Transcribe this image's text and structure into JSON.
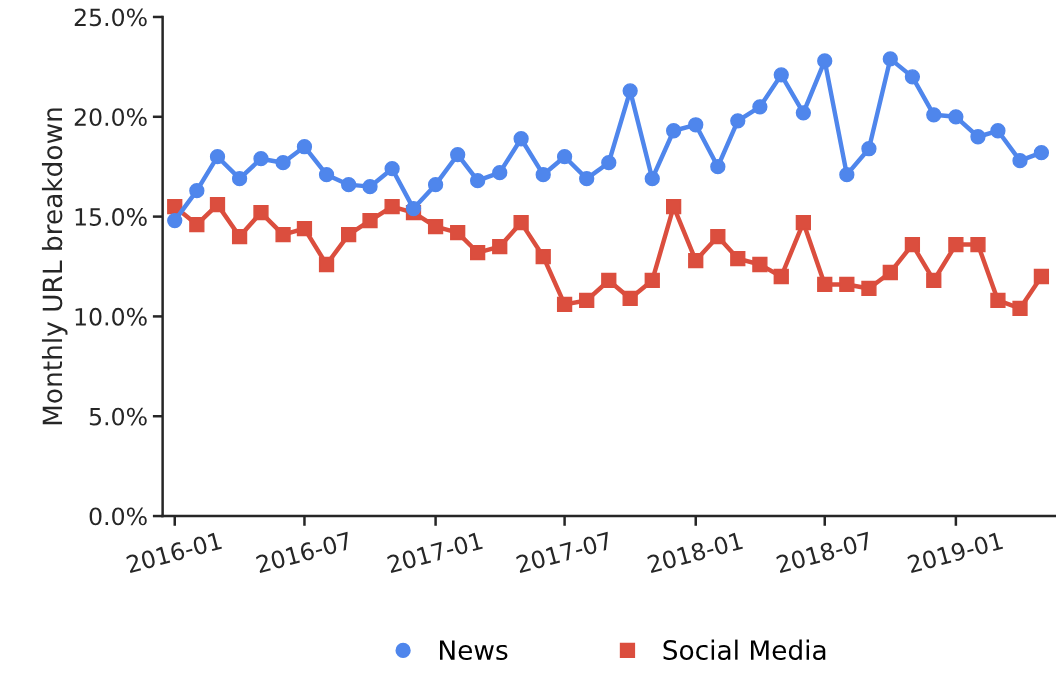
{
  "chart_data": {
    "type": "line",
    "ylabel": "Monthly URL breakdown",
    "x": [
      "2016-01",
      "2016-02",
      "2016-03",
      "2016-04",
      "2016-05",
      "2016-06",
      "2016-07",
      "2016-08",
      "2016-09",
      "2016-10",
      "2016-11",
      "2016-12",
      "2017-01",
      "2017-02",
      "2017-03",
      "2017-04",
      "2017-05",
      "2017-06",
      "2017-07",
      "2017-08",
      "2017-09",
      "2017-10",
      "2017-11",
      "2017-12",
      "2018-01",
      "2018-02",
      "2018-03",
      "2018-04",
      "2018-05",
      "2018-06",
      "2018-07",
      "2018-08",
      "2018-09",
      "2018-10",
      "2018-11",
      "2018-12",
      "2019-01",
      "2019-02",
      "2019-03",
      "2019-04",
      "2019-05"
    ],
    "series": [
      {
        "name": "News",
        "color": "#4f86ec",
        "marker": "circle",
        "values": [
          14.8,
          16.3,
          18.0,
          16.9,
          17.9,
          17.7,
          18.5,
          17.1,
          16.6,
          16.5,
          17.4,
          15.4,
          16.6,
          18.1,
          16.8,
          17.2,
          18.9,
          17.1,
          18.0,
          16.9,
          17.7,
          21.3,
          16.9,
          19.3,
          19.6,
          17.5,
          19.8,
          20.5,
          22.1,
          20.2,
          22.8,
          17.1,
          18.4,
          22.9,
          22.0,
          20.1,
          20.0,
          19.0,
          19.3,
          17.8,
          18.2
        ]
      },
      {
        "name": "Social Media",
        "color": "#db4e3e",
        "marker": "square",
        "values": [
          15.5,
          14.6,
          15.6,
          14.0,
          15.2,
          14.1,
          14.4,
          12.6,
          14.1,
          14.8,
          15.5,
          15.2,
          14.5,
          14.2,
          13.2,
          13.5,
          14.7,
          13.0,
          10.6,
          10.8,
          11.8,
          10.9,
          11.8,
          15.5,
          12.8,
          14.0,
          12.9,
          12.6,
          12.0,
          14.7,
          11.6,
          11.6,
          11.4,
          12.2,
          13.6,
          11.8,
          13.6,
          13.6,
          10.8,
          10.4,
          12.0
        ]
      }
    ],
    "xlim": [
      "2015-12-15",
      "2019-05-20"
    ],
    "xticks": [
      "2016-01",
      "2016-07",
      "2017-01",
      "2017-07",
      "2018-01",
      "2018-07",
      "2019-01"
    ],
    "ylim": [
      0,
      25
    ],
    "yticks": [
      {
        "value": 0,
        "label": "0.0%"
      },
      {
        "value": 5,
        "label": "5.0%"
      },
      {
        "value": 10,
        "label": "10.0%"
      },
      {
        "value": 15,
        "label": "15.0%"
      },
      {
        "value": 20,
        "label": "20.0%"
      },
      {
        "value": 25,
        "label": "25.0%"
      }
    ],
    "grid": false,
    "legend": "bottom",
    "line_style": "solid"
  }
}
